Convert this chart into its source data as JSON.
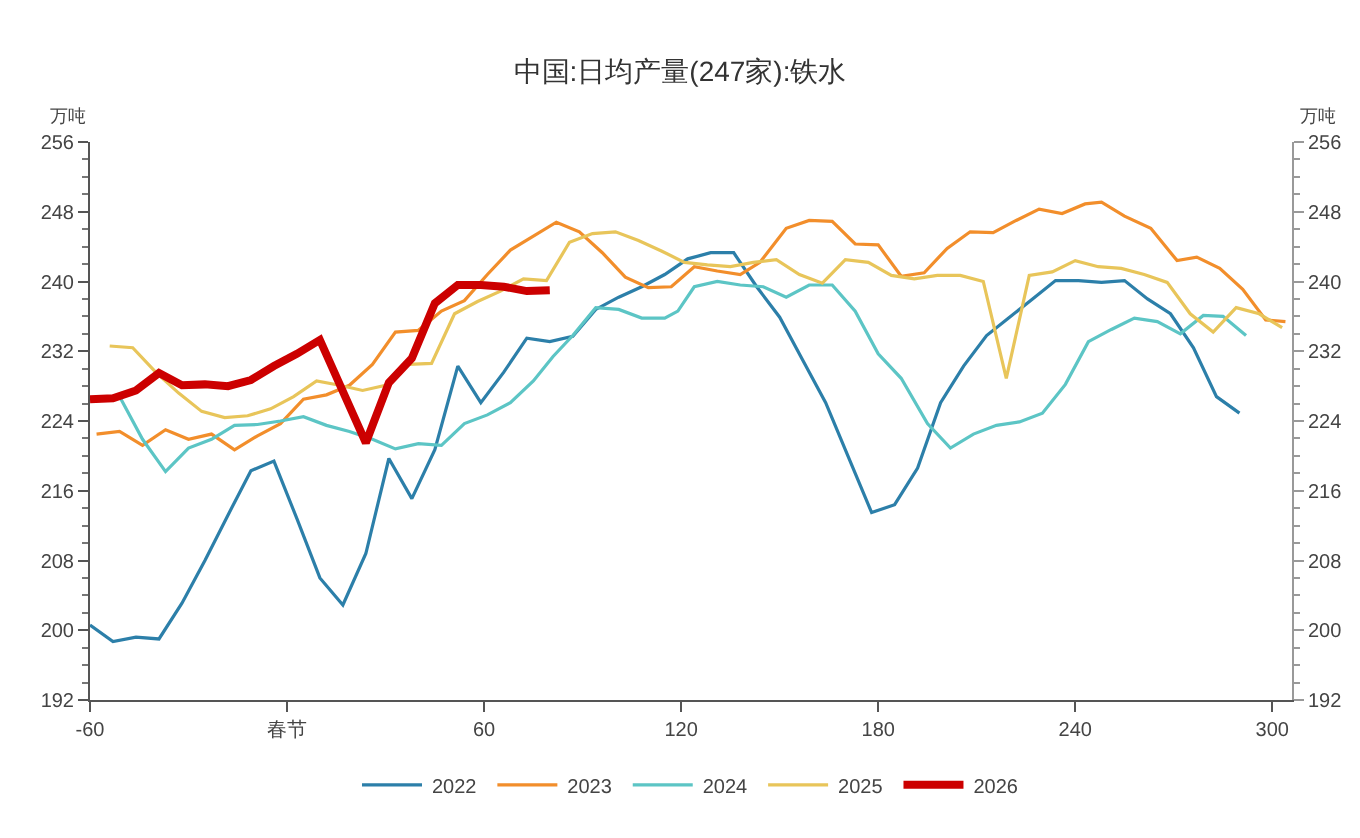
{
  "chart_data": {
    "type": "line",
    "title": "中国:日均产量(247家):铁水",
    "ylabel": "万吨",
    "y2label": "万吨",
    "xlim": [
      -60,
      306
    ],
    "xticks": [
      -60,
      {
        "value": 0,
        "label": "春节"
      },
      60,
      120,
      180,
      240,
      300
    ],
    "ylim": [
      192,
      256
    ],
    "yticks": [
      192,
      200,
      208,
      216,
      224,
      232,
      240,
      248,
      256
    ],
    "y2lim": [
      192,
      256
    ],
    "y2ticks": [
      192,
      200,
      208,
      216,
      224,
      232,
      240,
      248,
      256
    ],
    "grid": false,
    "legend": "bottom",
    "marker": "none",
    "line_style": "solid",
    "series": [
      {
        "name": "2022",
        "color": "#2c7fa9",
        "x": [
          -60,
          -53,
          -46,
          -39,
          -32,
          -25,
          -18,
          -11,
          -4,
          3,
          10,
          17,
          24,
          31,
          38,
          45,
          52,
          59,
          66,
          73,
          80,
          87,
          94,
          101,
          108,
          115,
          122,
          129,
          136,
          143,
          150,
          157,
          164,
          171,
          178,
          185,
          192,
          199,
          206,
          213,
          220,
          227,
          234,
          241,
          248,
          255,
          262,
          269,
          276,
          283,
          290
        ],
        "values": [
          200.6,
          198.7,
          199.2,
          199.0,
          203.1,
          208.0,
          213.2,
          218.3,
          219.4,
          212.8,
          206.0,
          202.9,
          208.8,
          219.7,
          215.1,
          220.7,
          230.3,
          226.1,
          229.6,
          233.5,
          233.1,
          233.7,
          236.8,
          238.2,
          239.4,
          240.8,
          242.6,
          243.3,
          243.3,
          239.4,
          235.9,
          231.0,
          226.1,
          219.8,
          213.5,
          214.4,
          218.6,
          226.1,
          230.3,
          233.8,
          235.9,
          238.0,
          240.1,
          240.1,
          239.9,
          240.1,
          238.0,
          236.3,
          232.4,
          226.8,
          224.9
        ]
      },
      {
        "name": "2023",
        "color": "#f28e2b",
        "x": [
          -58,
          -51,
          -44,
          -37,
          -30,
          -23,
          -16,
          -9,
          -2,
          5,
          12,
          19,
          26,
          33,
          40,
          47,
          54,
          61,
          68,
          82,
          89,
          96,
          103,
          110,
          117,
          124,
          131,
          138,
          144,
          152,
          159,
          166,
          173,
          180,
          187,
          194,
          201,
          208,
          215,
          222,
          229,
          236,
          243,
          248,
          255,
          263,
          271,
          277,
          284,
          291,
          298,
          304
        ],
        "values": [
          222.5,
          222.8,
          221.2,
          223.0,
          221.9,
          222.5,
          220.7,
          222.3,
          223.7,
          226.5,
          227.0,
          228.1,
          230.5,
          234.2,
          234.4,
          236.6,
          237.8,
          240.8,
          243.6,
          246.8,
          245.7,
          243.3,
          240.5,
          239.3,
          239.4,
          241.7,
          241.2,
          240.8,
          242.2,
          246.1,
          247.0,
          246.9,
          244.3,
          244.2,
          240.6,
          241.0,
          243.8,
          245.7,
          245.6,
          247.0,
          248.3,
          247.8,
          248.9,
          249.1,
          247.5,
          246.1,
          242.4,
          242.8,
          241.5,
          239.1,
          235.6,
          235.4
        ]
      },
      {
        "name": "2024",
        "color": "#5cc5c5",
        "x": [
          -51,
          -44,
          -37,
          -30,
          -23,
          -16,
          -9,
          -2,
          5,
          12,
          19,
          26,
          33,
          40,
          47,
          54,
          61,
          68,
          75,
          81,
          87,
          94,
          101,
          108,
          115,
          119,
          124,
          131,
          138,
          145,
          152,
          159,
          166,
          173,
          180,
          187,
          195,
          202,
          209,
          216,
          223,
          230,
          237,
          244,
          251,
          258,
          265,
          272,
          279,
          285,
          292
        ],
        "values": [
          226.8,
          221.9,
          218.2,
          220.9,
          221.9,
          223.5,
          223.6,
          224.0,
          224.5,
          223.5,
          222.8,
          221.9,
          220.8,
          221.4,
          221.2,
          223.7,
          224.7,
          226.1,
          228.6,
          231.4,
          233.8,
          237.0,
          236.8,
          235.8,
          235.8,
          236.6,
          239.4,
          240.0,
          239.6,
          239.4,
          238.2,
          239.6,
          239.6,
          236.6,
          231.7,
          228.9,
          223.7,
          220.9,
          222.5,
          223.5,
          223.9,
          224.9,
          228.2,
          233.1,
          234.5,
          235.8,
          235.4,
          234.0,
          236.1,
          236.0,
          233.8
        ]
      },
      {
        "name": "2025",
        "color": "#e8c55a",
        "x": [
          -54,
          -47,
          -40,
          -33,
          -26,
          -19,
          -12,
          -5,
          2,
          9,
          16,
          23,
          30,
          37,
          44,
          51,
          58,
          65,
          72,
          79,
          86,
          93,
          100,
          107,
          114,
          121,
          128,
          135,
          142,
          149,
          156,
          163,
          170,
          177,
          184,
          191,
          198,
          205,
          212,
          219,
          226,
          233,
          240,
          247,
          254,
          261,
          268,
          275,
          282,
          289,
          296,
          303
        ],
        "values": [
          232.6,
          232.4,
          229.6,
          227.2,
          225.1,
          224.4,
          224.6,
          225.4,
          226.8,
          228.6,
          228.1,
          227.5,
          228.1,
          230.5,
          230.6,
          236.3,
          237.7,
          238.9,
          240.3,
          240.1,
          244.5,
          245.5,
          245.7,
          244.7,
          243.5,
          242.2,
          241.9,
          241.7,
          242.2,
          242.5,
          240.8,
          239.8,
          242.5,
          242.2,
          240.7,
          240.3,
          240.7,
          240.7,
          240.0,
          228.9,
          240.7,
          241.1,
          242.4,
          241.7,
          241.5,
          240.8,
          239.9,
          236.3,
          234.2,
          237.0,
          236.3,
          234.7
        ]
      },
      {
        "name": "2026",
        "color": "#cc0000",
        "x": [
          -60,
          -53,
          -46,
          -39,
          -32,
          -25,
          -18,
          -11,
          -4,
          3,
          10,
          24,
          31,
          38,
          45,
          52,
          59,
          66,
          73,
          80
        ],
        "values": [
          226.5,
          226.6,
          227.5,
          229.5,
          228.1,
          228.2,
          228.0,
          228.7,
          230.3,
          231.7,
          233.3,
          221.5,
          228.4,
          231.2,
          237.5,
          239.6,
          239.6,
          239.4,
          238.9,
          239.0
        ]
      }
    ]
  }
}
